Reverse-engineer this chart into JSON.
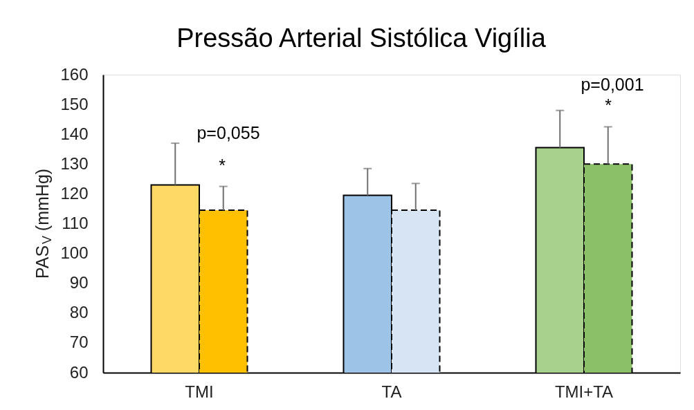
{
  "chart_data": {
    "type": "bar",
    "title": "Pressão Arterial Sistólica Vigília",
    "ylabel": "PAS$_{V}$ (mmHg)",
    "categories": [
      "TMI",
      "TA",
      "TMI+TA"
    ],
    "series": [
      {
        "colors": [
          "#ffd966",
          "#9dc3e6",
          "#a9d18e"
        ],
        "line_style": "solid",
        "values": [
          123,
          119.5,
          135.5
        ],
        "errors": [
          [
            123,
            137
          ],
          [
            119.5,
            128.5
          ],
          [
            135.5,
            148
          ]
        ]
      },
      {
        "colors": [
          "#ffc000",
          "#d6e4f3",
          "#8cc068"
        ],
        "line_style": "dashed",
        "values": [
          114.5,
          114.5,
          130
        ],
        "errors": [
          [
            114.5,
            122.5
          ],
          [
            114.5,
            123.5
          ],
          [
            130,
            142.5
          ]
        ]
      }
    ],
    "ylim": [
      60,
      160
    ],
    "yticks": [
      60,
      70,
      80,
      90,
      100,
      110,
      120,
      130,
      140,
      150,
      160
    ],
    "annotations": [
      "p=0,055",
      "*",
      "p=0,001",
      "*"
    ]
  }
}
